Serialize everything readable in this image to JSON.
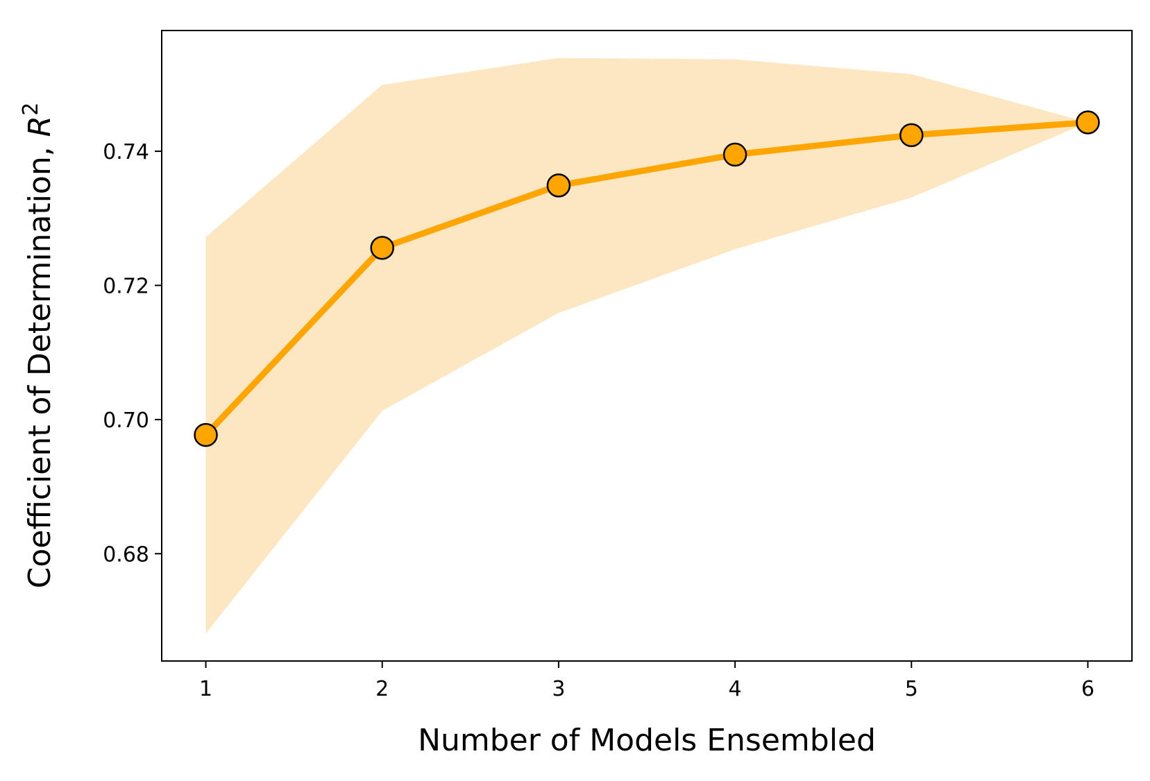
{
  "chart_data": {
    "type": "line",
    "title": "",
    "xlabel": "Number of Models Ensembled",
    "ylabel_text": "Coefficient of Determination, ",
    "ylabel_symbol": "R",
    "ylabel_superscript": "2",
    "x": [
      1,
      2,
      3,
      4,
      5,
      6
    ],
    "x_ticks": [
      "1",
      "2",
      "3",
      "4",
      "5",
      "6"
    ],
    "y_ticks": [
      "0.68",
      "0.70",
      "0.72",
      "0.74"
    ],
    "y_tick_values": [
      0.68,
      0.7,
      0.72,
      0.74
    ],
    "xlim": [
      0.75,
      6.25
    ],
    "ylim": [
      0.664,
      0.758
    ],
    "series": [
      {
        "values": [
          0.6977,
          0.7256,
          0.7349,
          0.7395,
          0.7424,
          0.7443
        ],
        "band_upper": [
          0.7272,
          0.7499,
          0.7539,
          0.7537,
          0.7515,
          0.7443
        ],
        "band_lower": [
          0.6681,
          0.7013,
          0.7159,
          0.7254,
          0.7331,
          0.7443
        ],
        "color": "#FFA500",
        "band_color": "#FDE7C2",
        "marker_edge": "#000000"
      }
    ],
    "grid": false,
    "legend": "none"
  }
}
